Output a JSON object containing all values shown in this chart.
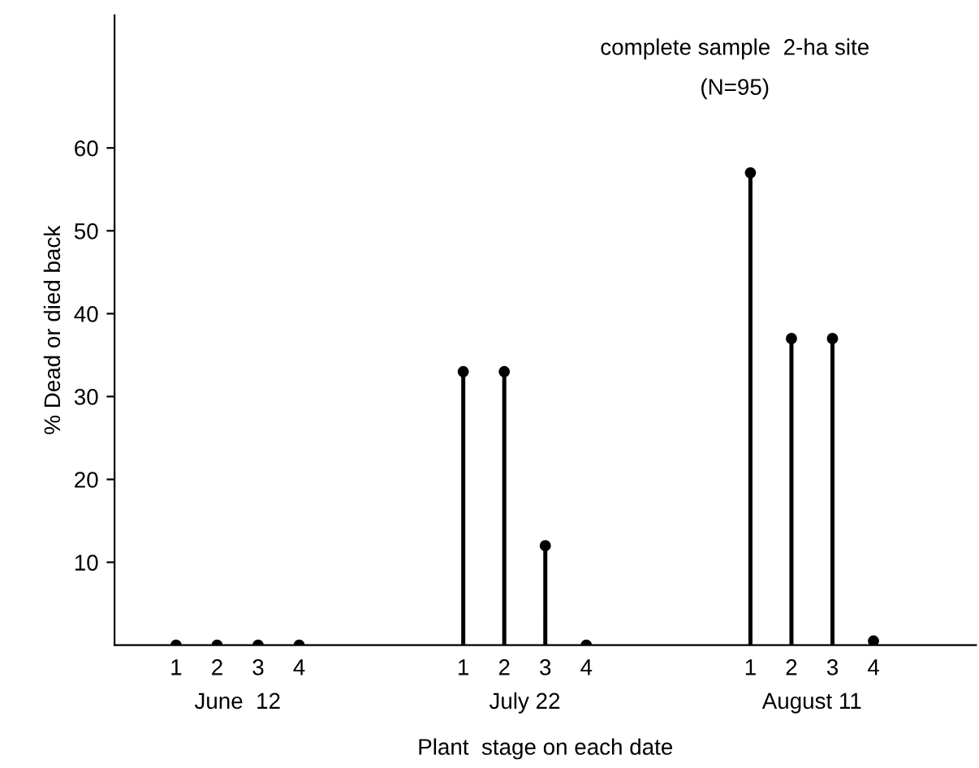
{
  "chart_data": {
    "type": "lollipop",
    "title": "complete sample  2-ha site",
    "subtitle": "(N=95)",
    "xlabel": "Plant  stage on each date",
    "ylabel": "% Dead or died back",
    "categories": [
      null,
      "1",
      "2",
      "3",
      "4",
      null,
      null,
      null,
      "1",
      "2",
      "3",
      "4",
      null,
      null,
      null,
      "1",
      "2",
      "3",
      "4",
      null,
      null
    ],
    "values": [
      null,
      0,
      0,
      0,
      0,
      null,
      null,
      null,
      33,
      33,
      12,
      0,
      null,
      null,
      null,
      57,
      37,
      37,
      0.5,
      null,
      null
    ],
    "annotations": [
      "June  12",
      "July 22",
      "August 11"
    ],
    "color": "#000000",
    "marker": "circle",
    "ylim": [
      0,
      76
    ],
    "yticks": [
      10,
      20,
      30,
      40,
      50,
      60
    ],
    "legend": false
  }
}
